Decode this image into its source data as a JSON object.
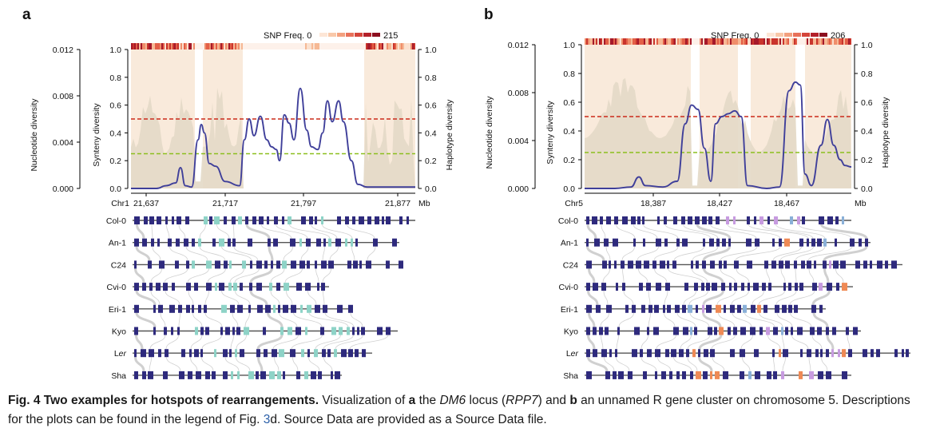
{
  "colors": {
    "nucleotide_fill": "#f9eadb",
    "synteny_fill": "#e3d9c6",
    "synteny_line": "#3f3f9a",
    "red_dash": "#cc2b1a",
    "green_dash": "#8bbf1e",
    "gene": "#2e2a7d",
    "gene_teal": "#8ed3c7",
    "gene_orange": "#ef8a55",
    "gene_blue": "#8ab0d8",
    "gene_pink": "#c79be0",
    "connector": "#c8c8c8"
  },
  "panel_a": {
    "label": "a",
    "snp_label": "SNP Freq. 0",
    "snp_max": "215",
    "left_axis_title": "Nucleotide diversity",
    "mid_axis_title": "Synteny diversity",
    "right_axis_title": "Haplotype diversity",
    "left_ticks": [
      "0.000",
      "0.004",
      "0.008",
      "0.012"
    ],
    "mid_ticks": [
      "0.0",
      "0.2",
      "0.4",
      "0.6",
      "0.8",
      "1.0"
    ],
    "right_ticks": [
      "0.0",
      "0.2",
      "0.4",
      "0.6",
      "0.8",
      "1.0"
    ],
    "chrom": "Chr1",
    "unit": "Mb",
    "x_ticks": [
      "21,637",
      "21,717",
      "21,797",
      "21,877"
    ],
    "accessions": [
      "Col-0",
      "An-1",
      "C24",
      "Cvi-0",
      "Eri-1",
      "Kyo",
      "Ler",
      "Sha"
    ]
  },
  "panel_b": {
    "label": "b",
    "snp_label": "SNP Freq. 0",
    "snp_max": "206",
    "left_axis_title": "Nucleotide diversity",
    "mid_axis_title": "Synteny diversity",
    "right_axis_title": "Haplotype diversity",
    "left_ticks": [
      "0.000",
      "0.004",
      "0.008",
      "0.012"
    ],
    "mid_ticks": [
      "0.0",
      "0.2",
      "0.4",
      "0.6",
      "0.8",
      "1.0"
    ],
    "right_ticks": [
      "0.0",
      "0.2",
      "0.4",
      "0.6",
      "0.8",
      "1.0"
    ],
    "chrom": "Chr5",
    "unit": "Mb",
    "x_ticks": [
      "18,387",
      "18,427",
      "18,467"
    ],
    "accessions": [
      "Col-0",
      "An-1",
      "C24",
      "Cvi-0",
      "Eri-1",
      "Kyo",
      "Ler",
      "Sha"
    ]
  },
  "caption": {
    "fig_label": "Fig. 4",
    "fig_title": "Two examples for hotspots of rearrangements.",
    "text_1": "Visualization of",
    "a": "a",
    "text_2": "the",
    "locus": "DM6",
    "text_3": "locus (",
    "gene": "RPP7",
    "text_4": ") and",
    "b": "b",
    "text_5": "an unnamed R gene cluster on chromosome 5. Descriptions for the plots can be found in the legend of Fig.",
    "fig_ref": "3",
    "text_6": "d. Source Data are provided as a Source Data file."
  }
}
